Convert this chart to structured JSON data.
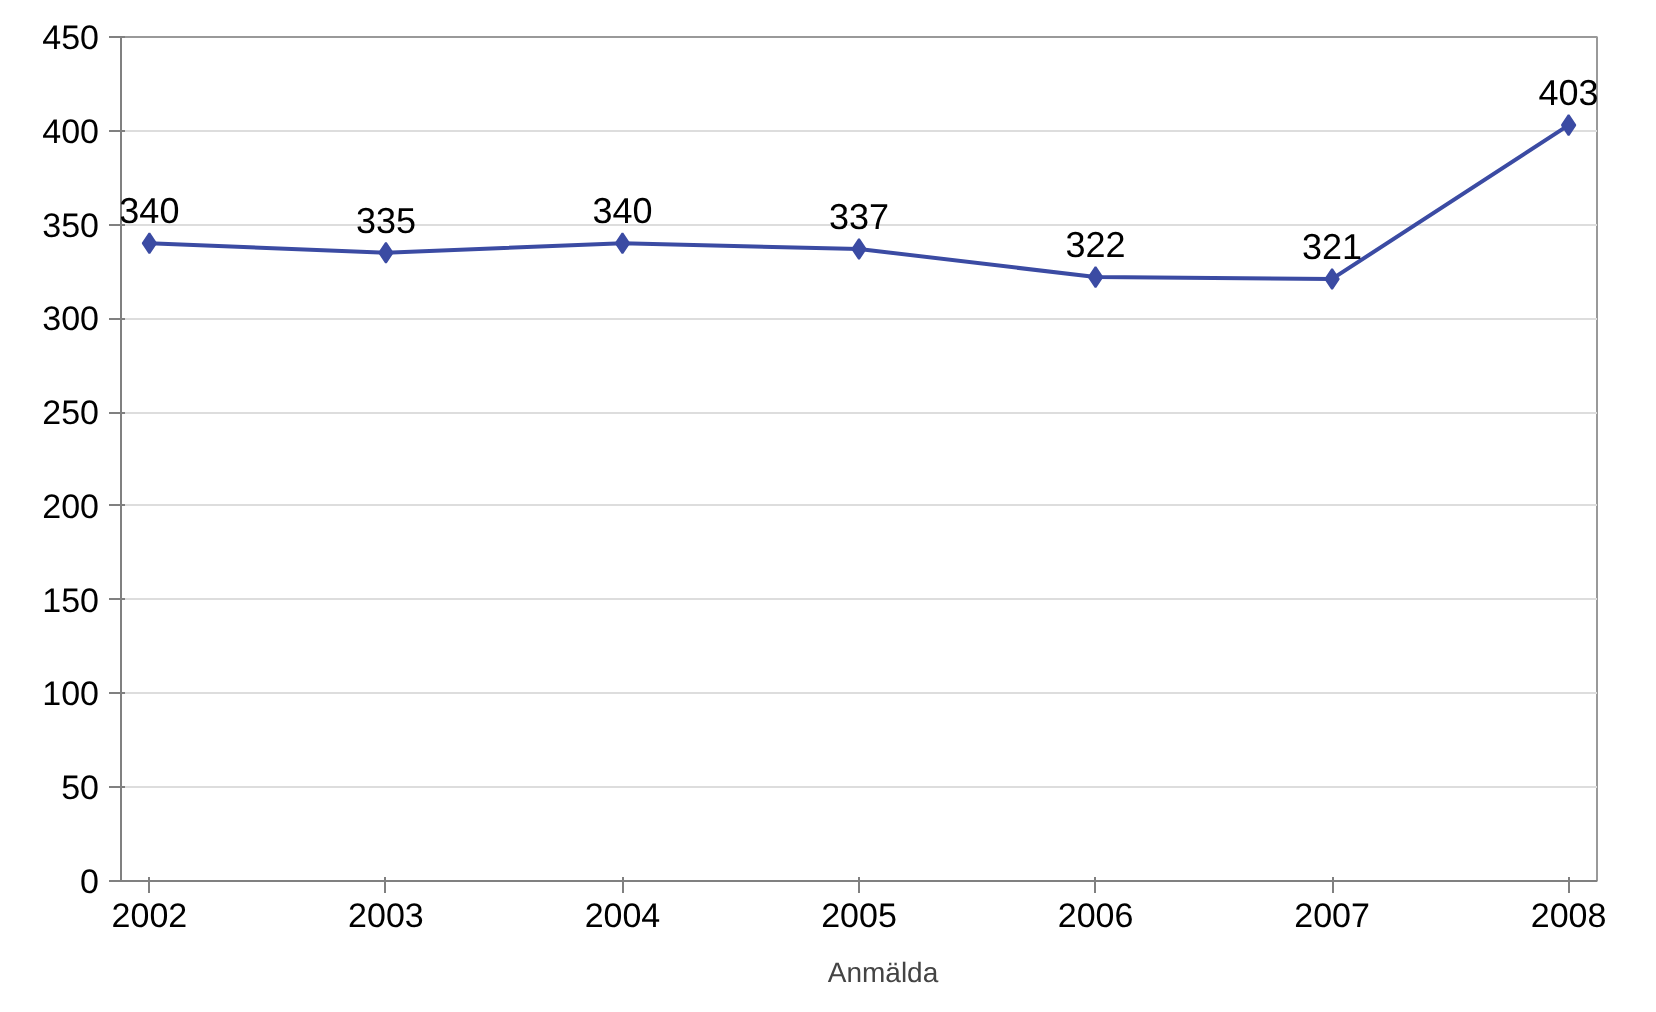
{
  "chart_data": {
    "type": "line",
    "categories": [
      "2002",
      "2003",
      "2004",
      "2005",
      "2006",
      "2007",
      "2008"
    ],
    "series": [
      {
        "name": "Anmälda",
        "color": "#3b4ba3",
        "values": [
          340,
          335,
          340,
          337,
          322,
          321,
          403
        ]
      }
    ],
    "ylim": [
      0,
      450
    ],
    "yticks": [
      0,
      50,
      100,
      150,
      200,
      250,
      300,
      350,
      400,
      450
    ],
    "grid": "y",
    "legend": "bottom",
    "marker": "diamond",
    "data_labels": true
  }
}
